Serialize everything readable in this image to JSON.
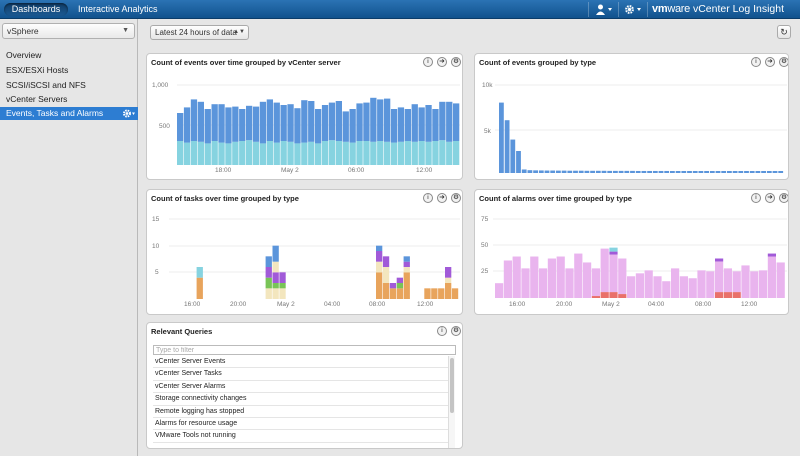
{
  "topbar": {
    "tabs": [
      {
        "label": "Dashboards",
        "active": true
      },
      {
        "label": "Interactive Analytics",
        "active": false
      }
    ],
    "brand_vm": "vm",
    "brand_ware": "ware",
    "product": "vCenter Log Insight",
    "user_icon": "user-icon",
    "settings_icon": "gear-icon"
  },
  "sidebar": {
    "selected": "vSphere",
    "items": [
      {
        "label": "Overview"
      },
      {
        "label": "ESX/ESXi Hosts"
      },
      {
        "label": "SCSI/iSCSI and NFS"
      },
      {
        "label": "vCenter Servers"
      },
      {
        "label": "Events, Tasks and Alarms",
        "active": true
      }
    ]
  },
  "toolbar": {
    "time_range": "Latest 24 hours of data",
    "refresh_icon": "refresh-icon"
  },
  "colors": {
    "accent": "#2d7dd2",
    "topbar": "#1d5f9e",
    "blue_series": "#5b95db",
    "cyan_series": "#86d3e0",
    "pink_series": "#e9b4ee",
    "alarm_red": "#e9716a",
    "task_orange": "#e8a45c",
    "task_cream": "#f3e6be",
    "task_green": "#79c457",
    "task_purple": "#a15ad8",
    "task_blue": "#5b95db",
    "task_cyan": "#86d3e0"
  },
  "panels": {
    "p1": {
      "title": "Count of events over time grouped by vCenter server",
      "chart_data": {
        "type": "bar",
        "stacked": true,
        "y_ticks": [
          "1,000",
          "500"
        ],
        "ylim": [
          0,
          1000
        ],
        "x_ticks": [
          "18:00",
          "May 2",
          "06:00",
          "12:00"
        ],
        "series": [
          {
            "values": [
              300,
              280,
              300,
              290,
              270,
              300,
              280,
              270,
              290,
              300,
              310,
              290,
              270,
              300,
              280,
              300,
              290,
              270,
              280,
              290,
              270,
              300,
              310,
              300,
              290,
              280,
              300,
              300,
              290,
              300,
              290,
              280,
              290,
              300,
              290,
              300,
              290,
              300,
              310,
              290,
              300
            ]
          },
          {
            "values": [
              350,
              440,
              520,
              500,
              430,
              460,
              480,
              450,
              440,
              400,
              430,
              440,
              520,
              520,
              500,
              450,
              470,
              440,
              530,
              510,
              430,
              450,
              470,
              500,
              380,
              420,
              470,
              480,
              550,
              520,
              540,
              420,
              430,
              400,
              470,
              420,
              460,
              400,
              480,
              500,
              470
            ]
          }
        ]
      }
    },
    "p2": {
      "title": "Count of events grouped by type",
      "chart_data": {
        "type": "bar",
        "y_ticks": [
          "10k",
          "5k"
        ],
        "ylim": [
          0,
          10000
        ],
        "values": [
          8000,
          6000,
          3800,
          2500,
          400,
          320,
          300,
          290,
          280,
          280,
          270,
          270,
          260,
          260,
          260,
          250,
          250,
          250,
          250,
          240,
          240,
          240,
          240,
          240,
          230,
          230,
          230,
          230,
          230,
          230,
          220,
          220,
          220,
          220,
          220,
          220,
          220,
          210,
          210,
          210,
          210,
          210,
          210,
          210,
          210,
          200,
          200,
          200,
          200,
          200
        ]
      }
    },
    "p3": {
      "title": "Count of tasks over time grouped by type",
      "chart_data": {
        "type": "bar",
        "stacked": true,
        "y_ticks": [
          "15",
          "10",
          "5"
        ],
        "ylim": [
          0,
          15
        ],
        "x_ticks": [
          "16:00",
          "20:00",
          "May 2",
          "04:00",
          "08:00",
          "12:00"
        ],
        "bars": [
          {
            "i": 4,
            "segs": [
              [
                "task_orange",
                4
              ],
              [
                "task_cyan",
                2
              ]
            ]
          },
          {
            "i": 14,
            "segs": [
              [
                "task_cream",
                2
              ],
              [
                "task_green",
                2
              ],
              [
                "task_purple",
                2
              ],
              [
                "task_blue",
                2
              ]
            ]
          },
          {
            "i": 15,
            "segs": [
              [
                "task_cream",
                2
              ],
              [
                "task_green",
                1
              ],
              [
                "task_purple",
                2
              ],
              [
                "task_cream",
                2
              ],
              [
                "task_blue",
                3
              ]
            ]
          },
          {
            "i": 16,
            "segs": [
              [
                "task_cream",
                2
              ],
              [
                "task_green",
                1
              ],
              [
                "task_purple",
                2
              ]
            ]
          },
          {
            "i": 30,
            "segs": [
              [
                "task_orange",
                3
              ],
              [
                "task_orange",
                2
              ],
              [
                "task_cream",
                2
              ],
              [
                "task_purple",
                2
              ],
              [
                "task_blue",
                1
              ]
            ]
          },
          {
            "i": 31,
            "segs": [
              [
                "task_orange",
                3
              ],
              [
                "task_cream",
                3
              ],
              [
                "task_purple",
                2
              ]
            ]
          },
          {
            "i": 32,
            "segs": [
              [
                "task_orange",
                2
              ],
              [
                "task_purple",
                1
              ]
            ]
          },
          {
            "i": 33,
            "segs": [
              [
                "task_orange",
                2
              ],
              [
                "task_green",
                1
              ],
              [
                "task_purple",
                1
              ]
            ]
          },
          {
            "i": 34,
            "segs": [
              [
                "task_orange",
                5
              ],
              [
                "task_cream",
                1
              ],
              [
                "task_purple",
                1
              ],
              [
                "task_blue",
                1
              ]
            ]
          },
          {
            "i": 37,
            "segs": [
              [
                "task_orange",
                2
              ]
            ]
          },
          {
            "i": 38,
            "segs": [
              [
                "task_orange",
                2
              ]
            ]
          },
          {
            "i": 39,
            "segs": [
              [
                "task_orange",
                2
              ]
            ]
          },
          {
            "i": 40,
            "segs": [
              [
                "task_orange",
                3
              ],
              [
                "task_cream",
                1
              ],
              [
                "task_purple",
                2
              ]
            ]
          },
          {
            "i": 41,
            "segs": [
              [
                "task_orange",
                2
              ]
            ]
          }
        ]
      }
    },
    "p4": {
      "title": "Count of alarms over time grouped by type",
      "chart_data": {
        "type": "bar",
        "stacked": true,
        "y_ticks": [
          "75",
          "50",
          "25"
        ],
        "ylim": [
          0,
          80
        ],
        "x_ticks": [
          "16:00",
          "20:00",
          "May 2",
          "04:00",
          "08:00",
          "12:00"
        ],
        "pink": [
          15,
          38,
          42,
          30,
          42,
          30,
          40,
          42,
          30,
          45,
          36,
          30,
          50,
          44,
          40,
          22,
          25,
          28,
          22,
          17,
          30,
          22,
          20,
          28,
          27,
          37,
          30,
          27,
          33,
          27,
          28,
          42,
          36
        ],
        "red": [
          0,
          0,
          0,
          0,
          0,
          0,
          0,
          0,
          0,
          0,
          0,
          2,
          6,
          6,
          4,
          0,
          0,
          0,
          0,
          0,
          0,
          0,
          0,
          0,
          0,
          6,
          6,
          6,
          0,
          0,
          0,
          0,
          0
        ],
        "extra": [
          null,
          null,
          null,
          null,
          null,
          null,
          null,
          null,
          null,
          null,
          null,
          null,
          null,
          [
            [
              "task_purple",
              3
            ],
            [
              "task_cyan",
              4
            ]
          ],
          null,
          null,
          null,
          null,
          null,
          null,
          null,
          null,
          null,
          null,
          null,
          [
            [
              "task_purple",
              3
            ]
          ],
          null,
          null,
          null,
          null,
          null,
          [
            [
              "task_purple",
              3
            ]
          ],
          null
        ]
      }
    },
    "p5": {
      "title": "Relevant Queries",
      "filter_placeholder": "Type to filter",
      "queries": [
        "vCenter Server Events",
        "vCenter Server Tasks",
        "vCenter Server Alarms",
        "Storage connectivity changes",
        "Remote logging has stopped",
        "Alarms for resource usage",
        "VMware Tools not running"
      ]
    }
  }
}
